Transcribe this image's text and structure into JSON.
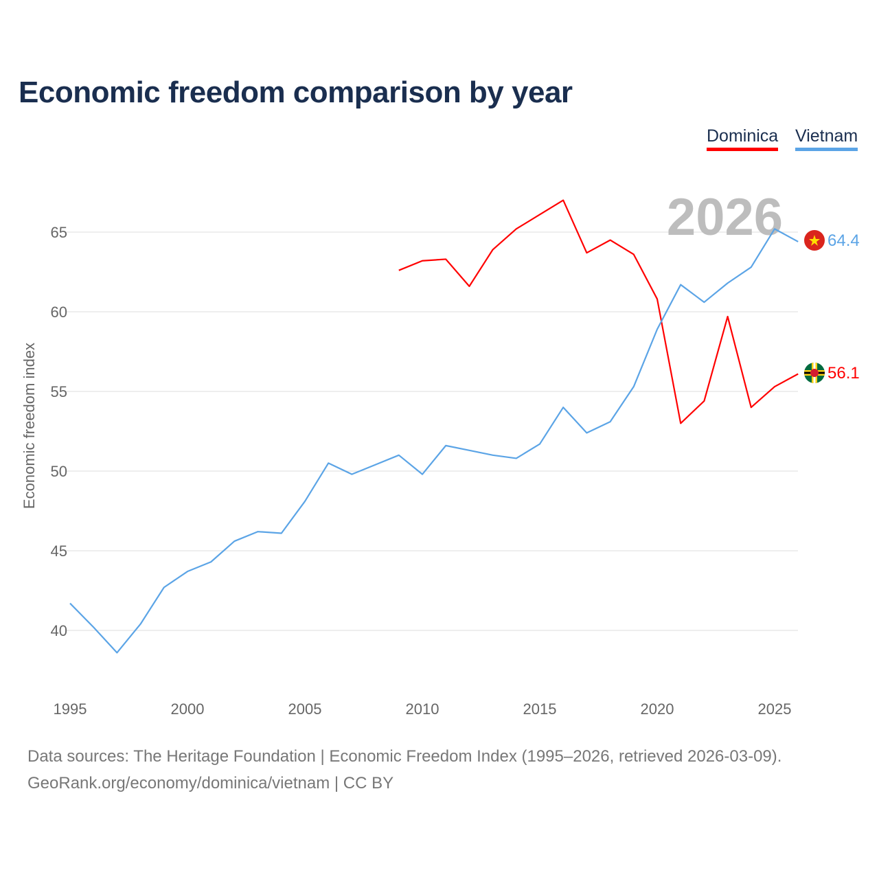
{
  "chart_data": {
    "type": "line",
    "title": "Economic freedom comparison by year",
    "ylabel": "Economic freedom index",
    "xlabel": "",
    "xlim": [
      1995,
      2026
    ],
    "ylim": [
      37,
      68
    ],
    "x_ticks": [
      1995,
      2000,
      2005,
      2010,
      2015,
      2020,
      2025
    ],
    "y_ticks": [
      40,
      45,
      50,
      55,
      60,
      65
    ],
    "grid": true,
    "legend_position": "top-right",
    "watermark_year": "2026",
    "series": [
      {
        "name": "Dominica",
        "color": "#ff0000",
        "end_label": "56.1",
        "x": [
          2009,
          2010,
          2011,
          2012,
          2013,
          2014,
          2015,
          2016,
          2017,
          2018,
          2019,
          2020,
          2021,
          2022,
          2023,
          2024,
          2025,
          2026
        ],
        "values": [
          62.6,
          63.2,
          63.3,
          61.6,
          63.9,
          65.2,
          66.1,
          67.0,
          63.7,
          64.5,
          63.6,
          60.8,
          53.0,
          54.4,
          59.7,
          54.0,
          55.3,
          56.1
        ]
      },
      {
        "name": "Vietnam",
        "color": "#5ba4e6",
        "end_label": "64.4",
        "x": [
          1995,
          1996,
          1997,
          1998,
          1999,
          2000,
          2001,
          2002,
          2003,
          2004,
          2005,
          2006,
          2007,
          2008,
          2009,
          2010,
          2011,
          2012,
          2013,
          2014,
          2015,
          2016,
          2017,
          2018,
          2019,
          2020,
          2021,
          2022,
          2023,
          2024,
          2025,
          2026
        ],
        "values": [
          41.7,
          40.2,
          38.6,
          40.4,
          42.7,
          43.7,
          44.3,
          45.6,
          46.2,
          46.1,
          48.1,
          50.5,
          49.8,
          50.4,
          51.0,
          49.8,
          51.6,
          51.3,
          51.0,
          50.8,
          51.7,
          54.0,
          52.4,
          53.1,
          55.3,
          58.9,
          61.7,
          60.6,
          61.8,
          62.8,
          65.2,
          64.4
        ]
      }
    ]
  },
  "footer": {
    "line1": "Data sources: The Heritage Foundation | Economic Freedom Index (1995–2026, retrieved 2026-03-09).",
    "line2": "GeoRank.org/economy/dominica/vietnam | CC BY"
  }
}
